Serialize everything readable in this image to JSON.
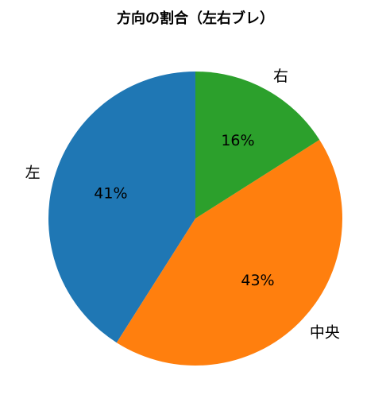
{
  "chart_data": {
    "type": "pie",
    "title": "方向の割合（左右ブレ）",
    "categories": [
      "左",
      "中央",
      "右"
    ],
    "values": [
      41,
      43,
      16
    ],
    "value_labels": [
      "41%",
      "43%",
      "16%"
    ],
    "colors": [
      "#1f77b4",
      "#ff7f0e",
      "#2ca02c"
    ],
    "start_angle": 90,
    "counterclock": true
  }
}
